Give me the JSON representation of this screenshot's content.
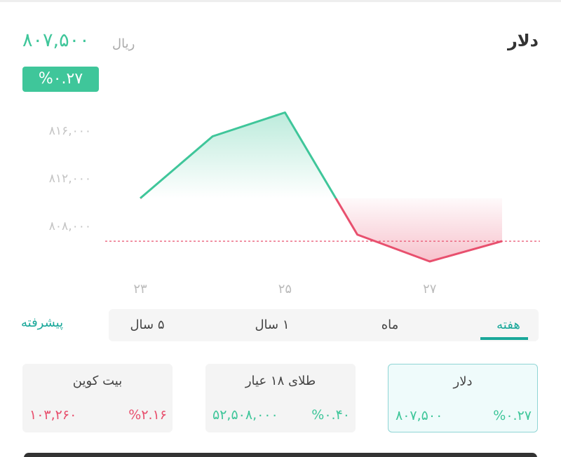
{
  "header": {
    "title": "دلار",
    "price": "۸۰۷,۵۰۰",
    "unit": "ریال",
    "change": "%۰.۲۷"
  },
  "chart_data": {
    "type": "line",
    "categories": [
      "۲۳",
      null,
      "۲۵",
      null,
      "۲۷",
      null
    ],
    "values": [
      810300,
      815500,
      817500,
      807250,
      805000,
      806700
    ],
    "ylim": [
      804000,
      818500
    ],
    "yticks": [
      {
        "value": 808000,
        "label": "۸۰۸,۰۰۰"
      },
      {
        "value": 812000,
        "label": "۸۱۲,۰۰۰"
      },
      {
        "value": 816000,
        "label": "۸۱۶,۰۰۰"
      }
    ],
    "reference_value": 806700,
    "up_color": "#3fc69a",
    "down_color": "#e8506e"
  },
  "periods": {
    "advanced": "پیشرفته",
    "tabs": [
      "هفته",
      "ماه",
      "۱ سال",
      "۵ سال"
    ],
    "selected": 0
  },
  "cards": [
    {
      "name": "دلار",
      "price": "۸۰۷,۵۰۰",
      "change": "%۰.۲۷",
      "color": "#3fc69a",
      "selected": true
    },
    {
      "name": "طلای ۱۸ عیار",
      "price": "۵۲,۵۰۸,۰۰۰",
      "change": "%۰.۴۰",
      "color": "#3fc69a",
      "selected": false
    },
    {
      "name": "بیت کوین",
      "price": "۱۰۳,۲۶۰",
      "change": "%۲.۱۶",
      "color": "#e8506e",
      "selected": false
    }
  ]
}
